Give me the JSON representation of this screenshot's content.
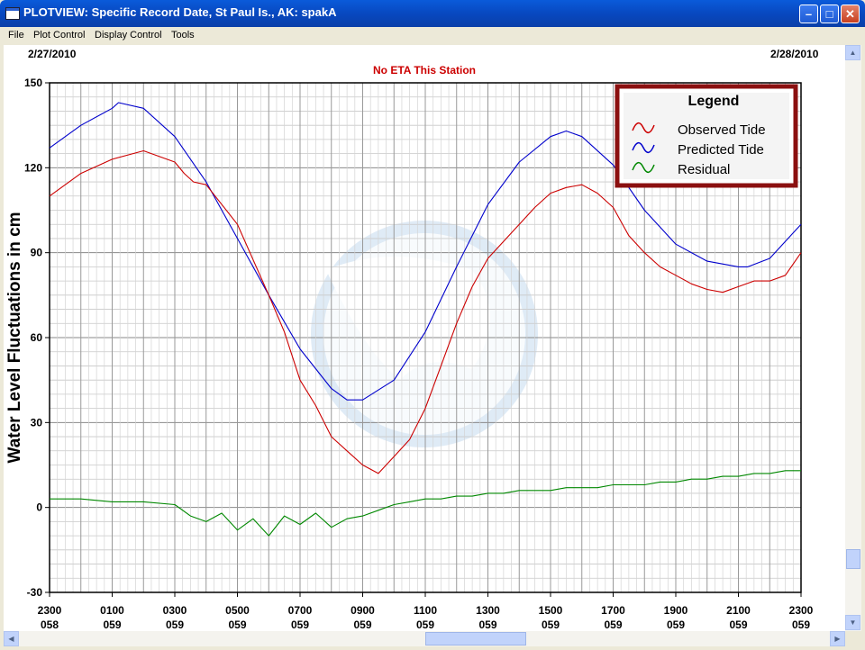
{
  "window": {
    "title": "PLOTVIEW: Specific Record Date, St Paul Is., AK: spakA",
    "buttons": [
      "minimize",
      "maximize",
      "close"
    ]
  },
  "menu": [
    "File",
    "Plot Control",
    "Display Control",
    "Tools"
  ],
  "colors": {
    "observed": "#cc0000",
    "predicted": "#0000cc",
    "residual": "#008800",
    "subtitle": "#cc0000",
    "legend_border": "#8b1010"
  },
  "chart_data": {
    "type": "line",
    "date_left": "2/27/2010",
    "date_right": "2/28/2010",
    "subtitle": "No ETA This Station",
    "ylabel": "Water Level Fluctuations in cm",
    "ylim": [
      -30,
      150
    ],
    "yticks": [
      -30,
      0,
      30,
      60,
      90,
      120,
      150
    ],
    "xlim": [
      0,
      24
    ],
    "xticks": [
      {
        "x": 0,
        "time": "2300",
        "day": "058"
      },
      {
        "x": 2,
        "time": "0100",
        "day": "059"
      },
      {
        "x": 4,
        "time": "0300",
        "day": "059"
      },
      {
        "x": 6,
        "time": "0500",
        "day": "059"
      },
      {
        "x": 8,
        "time": "0700",
        "day": "059"
      },
      {
        "x": 10,
        "time": "0900",
        "day": "059"
      },
      {
        "x": 12,
        "time": "1100",
        "day": "059"
      },
      {
        "x": 14,
        "time": "1300",
        "day": "059"
      },
      {
        "x": 16,
        "time": "1500",
        "day": "059"
      },
      {
        "x": 18,
        "time": "1700",
        "day": "059"
      },
      {
        "x": 20,
        "time": "1900",
        "day": "059"
      },
      {
        "x": 22,
        "time": "2100",
        "day": "059"
      },
      {
        "x": 24,
        "time": "2300",
        "day": "059"
      }
    ],
    "legend": {
      "title": "Legend",
      "entries": [
        "Observed Tide",
        "Predicted Tide",
        "Residual"
      ]
    },
    "series": [
      {
        "name": "Predicted Tide",
        "x": [
          0,
          1,
          2,
          2.2,
          3,
          4,
          5,
          6,
          7,
          8,
          9,
          9.5,
          10,
          11,
          12,
          13,
          14,
          15,
          16,
          16.5,
          17,
          18,
          19,
          20,
          21,
          22,
          22.3,
          23,
          24
        ],
        "values": [
          127,
          135,
          141,
          143,
          141,
          131,
          115,
          95,
          75,
          56,
          42,
          38,
          38,
          45,
          62,
          85,
          107,
          122,
          131,
          133,
          131,
          121,
          105,
          93,
          87,
          85,
          85,
          88,
          100
        ]
      },
      {
        "name": "Observed Tide",
        "x": [
          0,
          1,
          2,
          3,
          4,
          4.3,
          4.6,
          5,
          6,
          7,
          7.5,
          8,
          8.5,
          9,
          9.5,
          10,
          10.5,
          11,
          11.5,
          12,
          12.5,
          13,
          13.5,
          14,
          14.5,
          15,
          15.5,
          16,
          16.5,
          17,
          17.5,
          18,
          18.5,
          19,
          19.5,
          20,
          20.5,
          21,
          21.5,
          22,
          22.5,
          23,
          23.5,
          24
        ],
        "values": [
          110,
          118,
          123,
          126,
          122,
          118,
          115,
          114,
          100,
          75,
          62,
          45,
          36,
          25,
          20,
          15,
          12,
          18,
          24,
          35,
          50,
          65,
          78,
          88,
          94,
          100,
          106,
          111,
          113,
          114,
          111,
          106,
          96,
          90,
          85,
          82,
          79,
          77,
          76,
          78,
          80,
          80,
          82,
          90
        ]
      },
      {
        "name": "Residual",
        "x": [
          0,
          1,
          2,
          3,
          4,
          4.5,
          5,
          5.5,
          6,
          6.5,
          7,
          7.5,
          8,
          8.5,
          9,
          9.5,
          10,
          10.5,
          11,
          11.5,
          12,
          12.5,
          13,
          13.5,
          14,
          14.5,
          15,
          15.5,
          16,
          16.5,
          17,
          17.5,
          18,
          18.5,
          19,
          19.5,
          20,
          20.5,
          21,
          21.5,
          22,
          22.5,
          23,
          23.5,
          24
        ],
        "values": [
          3,
          3,
          2,
          2,
          1,
          -3,
          -5,
          -2,
          -8,
          -4,
          -10,
          -3,
          -6,
          -2,
          -7,
          -4,
          -3,
          -1,
          1,
          2,
          3,
          3,
          4,
          4,
          5,
          5,
          6,
          6,
          6,
          7,
          7,
          7,
          8,
          8,
          8,
          9,
          9,
          10,
          10,
          11,
          11,
          12,
          12,
          13,
          13
        ]
      }
    ]
  }
}
